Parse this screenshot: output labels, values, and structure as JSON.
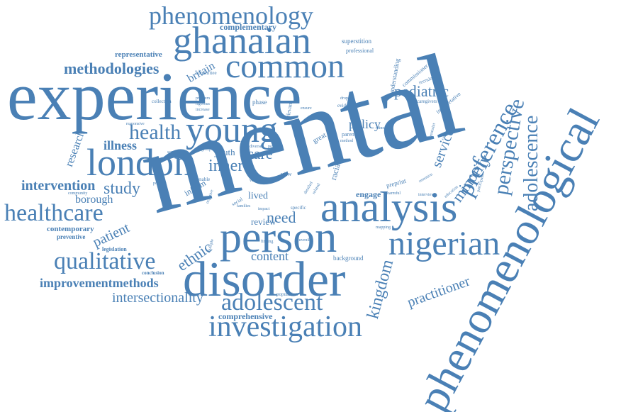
{
  "theme": {
    "word_color": "#4a80b5",
    "background": "#ffffff"
  },
  "words": [
    {
      "key": "mental",
      "text": "mental"
    },
    {
      "key": "experience",
      "text": "experience"
    },
    {
      "key": "phenomenological",
      "text": "phenomenological"
    },
    {
      "key": "disorder",
      "text": "disorder"
    },
    {
      "key": "person",
      "text": "person"
    },
    {
      "key": "analysis",
      "text": "analysis"
    },
    {
      "key": "london",
      "text": "london"
    },
    {
      "key": "young",
      "text": "young"
    },
    {
      "key": "ghanaian",
      "text": "ghanaian"
    },
    {
      "key": "common",
      "text": "common"
    },
    {
      "key": "phenomenology",
      "text": "phenomenology"
    },
    {
      "key": "nigerian",
      "text": "nigerian"
    },
    {
      "key": "investigation",
      "text": "investigation"
    },
    {
      "key": "adolescent",
      "text": "adolescent"
    },
    {
      "key": "healthcare",
      "text": "healthcare"
    },
    {
      "key": "qualitative",
      "text": "qualitative"
    },
    {
      "key": "health",
      "text": "health"
    },
    {
      "key": "perspective",
      "text": "perspective"
    },
    {
      "key": "preference",
      "text": "preference"
    },
    {
      "key": "adolescence",
      "text": "adolescence"
    },
    {
      "key": "intersectionality",
      "text": "intersectionality"
    },
    {
      "key": "improvementmethods",
      "text": "improvementmethods"
    },
    {
      "key": "methodologies",
      "text": "methodologies"
    },
    {
      "key": "pediatric",
      "text": "pediatric"
    },
    {
      "key": "intervention",
      "text": "intervention"
    },
    {
      "key": "study",
      "text": "study"
    },
    {
      "key": "kingdom",
      "text": "kingdom"
    },
    {
      "key": "practitioner",
      "text": "practitioner"
    },
    {
      "key": "minority",
      "text": "minority"
    },
    {
      "key": "service",
      "text": "service"
    },
    {
      "key": "illness",
      "text": "illness"
    },
    {
      "key": "inner",
      "text": "inner"
    },
    {
      "key": "care",
      "text": "care"
    },
    {
      "key": "need",
      "text": "need"
    },
    {
      "key": "ethnic",
      "text": "ethnic"
    },
    {
      "key": "patient",
      "text": "patient"
    },
    {
      "key": "content",
      "text": "content"
    },
    {
      "key": "policy",
      "text": "policy"
    },
    {
      "key": "research",
      "text": "research"
    },
    {
      "key": "borough",
      "text": "borough"
    },
    {
      "key": "britain",
      "text": "britain"
    },
    {
      "key": "complementary",
      "text": "complementary"
    },
    {
      "key": "representative",
      "text": "representative"
    },
    {
      "key": "inform",
      "text": "inform"
    },
    {
      "key": "youth",
      "text": "youth"
    },
    {
      "key": "lived",
      "text": "lived"
    },
    {
      "key": "review",
      "text": "review"
    },
    {
      "key": "engage",
      "text": "engage"
    },
    {
      "key": "comprehensive",
      "text": "comprehensive"
    },
    {
      "key": "contemporary",
      "text": "contemporary"
    },
    {
      "key": "preventive",
      "text": "preventive"
    },
    {
      "key": "legislation",
      "text": "legislation"
    },
    {
      "key": "conclusion",
      "text": "conclusion"
    },
    {
      "key": "population",
      "text": "population"
    },
    {
      "key": "background",
      "text": "background"
    },
    {
      "key": "juvenile",
      "text": "juvenile"
    },
    {
      "key": "mapping",
      "text": "mapping"
    },
    {
      "key": "superstition",
      "text": "superstition"
    },
    {
      "key": "professional",
      "text": "professional"
    },
    {
      "key": "understanding",
      "text": "understanding"
    },
    {
      "key": "commissioner",
      "text": "commissioner"
    },
    {
      "key": "recruitment",
      "text": "recruitment"
    },
    {
      "key": "interpretative",
      "text": "interpretative"
    },
    {
      "key": "caregivers",
      "text": "caregivers"
    },
    {
      "key": "dropout",
      "text": "dropout"
    },
    {
      "key": "evidence",
      "text": "evidence"
    },
    {
      "key": "relevant",
      "text": "relevant"
    },
    {
      "key": "phase",
      "text": "phase"
    },
    {
      "key": "committee",
      "text": "committee"
    },
    {
      "key": "collection",
      "text": "collection"
    },
    {
      "key": "problem",
      "text": "problem"
    },
    {
      "key": "rigorous",
      "text": "rigorous"
    },
    {
      "key": "increase",
      "text": "increase"
    },
    {
      "key": "responsive",
      "text": "responsive"
    },
    {
      "key": "ensure",
      "text": "ensure"
    },
    {
      "key": "great",
      "text": "great"
    },
    {
      "key": "parent",
      "text": "parent"
    },
    {
      "key": "method",
      "text": "method"
    },
    {
      "key": "minorities",
      "text": "minorities"
    },
    {
      "key": "constraint",
      "text": "constraint"
    },
    {
      "key": "connotation",
      "text": "connotation"
    },
    {
      "key": "scoping",
      "text": "scoping"
    },
    {
      "key": "group",
      "text": "group"
    },
    {
      "key": "diverse",
      "text": "diverse"
    },
    {
      "key": "power",
      "text": "power"
    },
    {
      "key": "community",
      "text": "community"
    },
    {
      "key": "policies",
      "text": "policies"
    },
    {
      "key": "enable",
      "text": "enable"
    },
    {
      "key": "voice",
      "text": "voice"
    },
    {
      "key": "social",
      "text": "social"
    },
    {
      "key": "families",
      "text": "families"
    },
    {
      "key": "negative",
      "text": "negative"
    },
    {
      "key": "multiple",
      "text": "multiple"
    },
    {
      "key": "finding",
      "text": "finding"
    },
    {
      "key": "impact",
      "text": "impact"
    },
    {
      "key": "specific",
      "text": "specific"
    },
    {
      "key": "racial",
      "text": "racial"
    },
    {
      "key": "view",
      "text": "view"
    },
    {
      "key": "preprint",
      "text": "preprint"
    },
    {
      "key": "harmful",
      "text": "harmful"
    },
    {
      "key": "interview",
      "text": "interview"
    },
    {
      "key": "retention",
      "text": "retention"
    },
    {
      "key": "education",
      "text": "education"
    },
    {
      "key": "participant",
      "text": "participant"
    },
    {
      "key": "detailed",
      "text": "detailed"
    },
    {
      "key": "related",
      "text": "related"
    }
  ]
}
